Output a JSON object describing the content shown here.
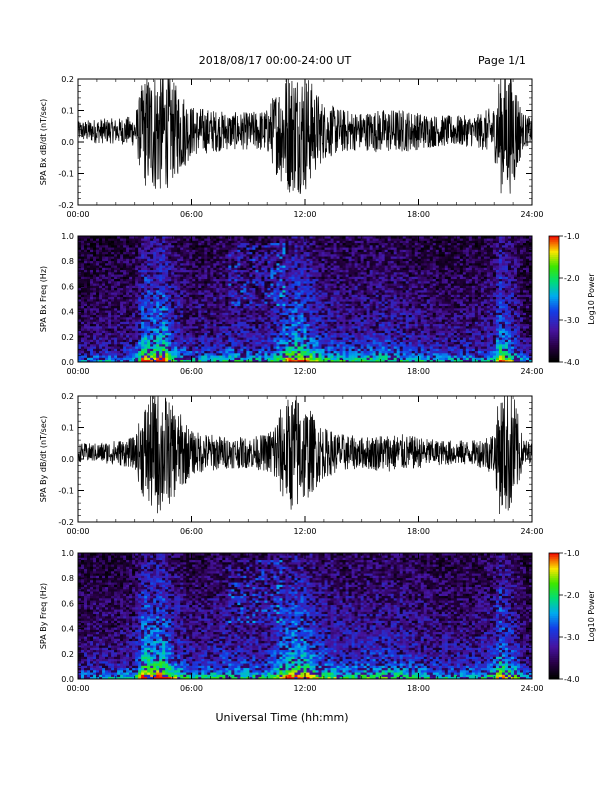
{
  "header": {
    "title": "2018/08/17  00:00-24:00 UT",
    "page": "Page 1/1"
  },
  "footer": {
    "xlabel": "Universal Time (hh:mm)"
  },
  "chart_data": [
    {
      "type": "line",
      "ylabel": "SPA Bx dB/dt (nT/sec)",
      "xlim": [
        0,
        24
      ],
      "ylim": [
        -0.2,
        0.2
      ],
      "x_ticks": [
        "00:00",
        "06:00",
        "12:00",
        "18:00",
        "24:00"
      ],
      "y_ticks": [
        "-0.2",
        "-0.1",
        "0.0",
        "0.1",
        "0.2"
      ],
      "series": [
        {
          "baseline": 0.035,
          "hours": [
            0,
            1,
            2,
            3,
            3.5,
            4,
            4.5,
            5,
            5.5,
            6,
            7,
            8,
            9,
            10,
            10.5,
            11,
            11.5,
            12,
            12.5,
            13,
            14,
            15,
            16,
            17,
            18,
            19,
            20,
            21,
            22,
            22.3,
            22.6,
            23,
            23.5,
            24
          ],
          "envelope": [
            0.03,
            0.04,
            0.04,
            0.05,
            0.18,
            0.2,
            0.2,
            0.16,
            0.13,
            0.08,
            0.07,
            0.06,
            0.06,
            0.07,
            0.14,
            0.2,
            0.2,
            0.2,
            0.14,
            0.09,
            0.07,
            0.06,
            0.07,
            0.07,
            0.06,
            0.05,
            0.05,
            0.05,
            0.08,
            0.2,
            0.2,
            0.2,
            0.06,
            0.04
          ]
        }
      ]
    },
    {
      "type": "heatmap",
      "ylabel": "SPA Bx Freq (Hz)",
      "colorbar_label": "Log10 Power",
      "colorbar_ticks": [
        "-1.0",
        "-2.0",
        "-3.0",
        "-4.0"
      ],
      "xlim": [
        0,
        24
      ],
      "ylim": [
        0,
        1
      ],
      "x_ticks": [
        "00:00",
        "06:00",
        "12:00",
        "18:00",
        "24:00"
      ],
      "y_ticks": [
        "0.0",
        "0.2",
        "0.4",
        "0.6",
        "0.8",
        "1.0"
      ],
      "zlim": [
        -4,
        -1
      ],
      "activity_hours": [
        0,
        1,
        2,
        3,
        3.5,
        4,
        4.5,
        5,
        5.5,
        6,
        7,
        8,
        9,
        10,
        10.5,
        11,
        11.5,
        12,
        12.5,
        13,
        14,
        15,
        16,
        17,
        18,
        19,
        20,
        21,
        22,
        22.3,
        22.6,
        23,
        23.5,
        24
      ],
      "activity": [
        0.3,
        0.35,
        0.35,
        0.4,
        0.9,
        0.8,
        0.95,
        0.6,
        0.5,
        0.4,
        0.45,
        0.5,
        0.45,
        0.45,
        0.6,
        0.75,
        0.85,
        0.8,
        0.65,
        0.55,
        0.5,
        0.5,
        0.55,
        0.5,
        0.45,
        0.4,
        0.4,
        0.4,
        0.5,
        0.85,
        0.7,
        0.6,
        0.35,
        0.3
      ]
    },
    {
      "type": "line",
      "ylabel": "SPA By dB/dt (nT/sec)",
      "xlim": [
        0,
        24
      ],
      "ylim": [
        -0.2,
        0.2
      ],
      "x_ticks": [
        "00:00",
        "06:00",
        "12:00",
        "18:00",
        "24:00"
      ],
      "y_ticks": [
        "-0.2",
        "-0.1",
        "0.0",
        "0.1",
        "0.2"
      ],
      "series": [
        {
          "baseline": 0.02,
          "hours": [
            0,
            1,
            2,
            3,
            3.5,
            4,
            4.5,
            5,
            5.5,
            6,
            7,
            8,
            9,
            10,
            10.5,
            11,
            11.5,
            12,
            12.5,
            13,
            14,
            15,
            16,
            17,
            18,
            19,
            20,
            21,
            22,
            22.3,
            22.6,
            23,
            23.5,
            24
          ],
          "envelope": [
            0.03,
            0.03,
            0.04,
            0.05,
            0.16,
            0.2,
            0.2,
            0.15,
            0.12,
            0.07,
            0.06,
            0.05,
            0.05,
            0.06,
            0.12,
            0.17,
            0.2,
            0.16,
            0.12,
            0.08,
            0.06,
            0.05,
            0.06,
            0.06,
            0.05,
            0.04,
            0.04,
            0.04,
            0.07,
            0.2,
            0.2,
            0.2,
            0.05,
            0.03
          ]
        }
      ]
    },
    {
      "type": "heatmap",
      "ylabel": "SPA By Freq (Hz)",
      "colorbar_label": "Log10 Power",
      "colorbar_ticks": [
        "-1.0",
        "-2.0",
        "-3.0",
        "-4.0"
      ],
      "xlim": [
        0,
        24
      ],
      "ylim": [
        0,
        1
      ],
      "x_ticks": [
        "00:00",
        "06:00",
        "12:00",
        "18:00",
        "24:00"
      ],
      "y_ticks": [
        "0.0",
        "0.2",
        "0.4",
        "0.6",
        "0.8",
        "1.0"
      ],
      "zlim": [
        -4,
        -1
      ],
      "activity_hours": [
        0,
        1,
        2,
        3,
        3.5,
        4,
        4.5,
        5,
        5.5,
        6,
        7,
        8,
        9,
        10,
        10.5,
        11,
        11.5,
        12,
        12.5,
        13,
        14,
        15,
        16,
        17,
        18,
        19,
        20,
        21,
        22,
        22.3,
        22.6,
        23,
        23.5,
        24
      ],
      "activity": [
        0.35,
        0.4,
        0.4,
        0.45,
        0.95,
        0.85,
        0.95,
        0.65,
        0.55,
        0.45,
        0.5,
        0.55,
        0.5,
        0.5,
        0.65,
        0.8,
        0.9,
        0.85,
        0.7,
        0.6,
        0.55,
        0.55,
        0.6,
        0.55,
        0.5,
        0.45,
        0.45,
        0.45,
        0.55,
        0.9,
        0.75,
        0.65,
        0.4,
        0.35
      ]
    }
  ]
}
